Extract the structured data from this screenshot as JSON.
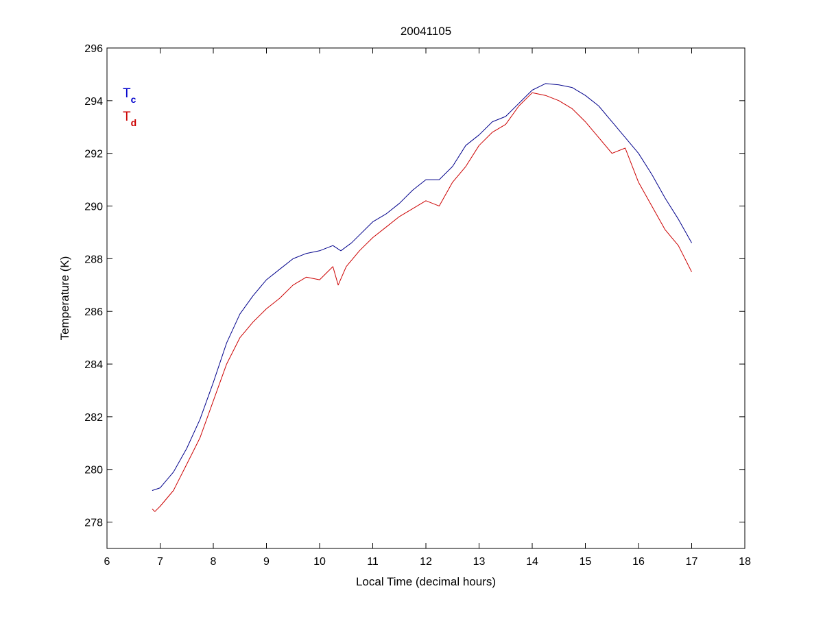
{
  "chart_data": {
    "type": "line",
    "title": "20041105",
    "xlabel": "Local Time (decimal hours)",
    "ylabel": "Temperature (K)",
    "xlim": [
      6,
      18
    ],
    "ylim": [
      277,
      296
    ],
    "xticks": [
      "6",
      "7",
      "8",
      "9",
      "10",
      "11",
      "12",
      "13",
      "14",
      "15",
      "16",
      "17",
      "18"
    ],
    "yticks": [
      "278",
      "280",
      "282",
      "284",
      "286",
      "288",
      "290",
      "292",
      "294",
      "296"
    ],
    "grid": false,
    "legend": {
      "placement": "top-left",
      "entries": [
        {
          "main": "T",
          "sub": "c",
          "color": "#0000cc"
        },
        {
          "main": "T",
          "sub": "d",
          "color": "#cc0000"
        }
      ]
    },
    "series": [
      {
        "color": "#00008b",
        "x": [
          6.85,
          7.0,
          7.25,
          7.5,
          7.75,
          8.0,
          8.25,
          8.5,
          8.75,
          9.0,
          9.25,
          9.5,
          9.75,
          10.0,
          10.25,
          10.4,
          10.6,
          10.75,
          11.0,
          11.25,
          11.5,
          11.75,
          12.0,
          12.25,
          12.5,
          12.75,
          13.0,
          13.25,
          13.5,
          13.75,
          14.0,
          14.25,
          14.5,
          14.75,
          15.0,
          15.25,
          15.5,
          15.75,
          16.0,
          16.25,
          16.5,
          16.75,
          17.0
        ],
        "values": [
          279.2,
          279.3,
          279.9,
          280.8,
          281.9,
          283.3,
          284.8,
          285.9,
          286.6,
          287.2,
          287.6,
          288.0,
          288.2,
          288.3,
          288.5,
          288.3,
          288.6,
          288.9,
          289.4,
          289.7,
          290.1,
          290.6,
          291.0,
          291.0,
          291.5,
          292.3,
          292.7,
          293.2,
          293.4,
          293.9,
          294.4,
          294.65,
          294.6,
          294.5,
          294.2,
          293.8,
          293.2,
          292.6,
          292.0,
          291.2,
          290.3,
          289.5,
          288.6
        ]
      },
      {
        "color": "#cc0000",
        "x": [
          6.85,
          6.9,
          7.0,
          7.25,
          7.5,
          7.75,
          8.0,
          8.25,
          8.5,
          8.75,
          9.0,
          9.25,
          9.5,
          9.75,
          10.0,
          10.25,
          10.35,
          10.5,
          10.75,
          11.0,
          11.25,
          11.5,
          11.75,
          12.0,
          12.25,
          12.5,
          12.75,
          13.0,
          13.25,
          13.5,
          13.75,
          14.0,
          14.25,
          14.5,
          14.75,
          15.0,
          15.25,
          15.5,
          15.75,
          16.0,
          16.25,
          16.5,
          16.75,
          17.0
        ],
        "values": [
          278.5,
          278.4,
          278.6,
          279.2,
          280.2,
          281.2,
          282.6,
          284.0,
          285.0,
          285.6,
          286.1,
          286.5,
          287.0,
          287.3,
          287.2,
          287.7,
          287.0,
          287.7,
          288.3,
          288.8,
          289.2,
          289.6,
          289.9,
          290.2,
          290.0,
          290.9,
          291.5,
          292.3,
          292.8,
          293.1,
          293.8,
          294.3,
          294.2,
          294.0,
          293.7,
          293.2,
          292.6,
          292.0,
          292.2,
          290.9,
          290.0,
          289.1,
          288.5,
          287.5
        ]
      }
    ]
  }
}
